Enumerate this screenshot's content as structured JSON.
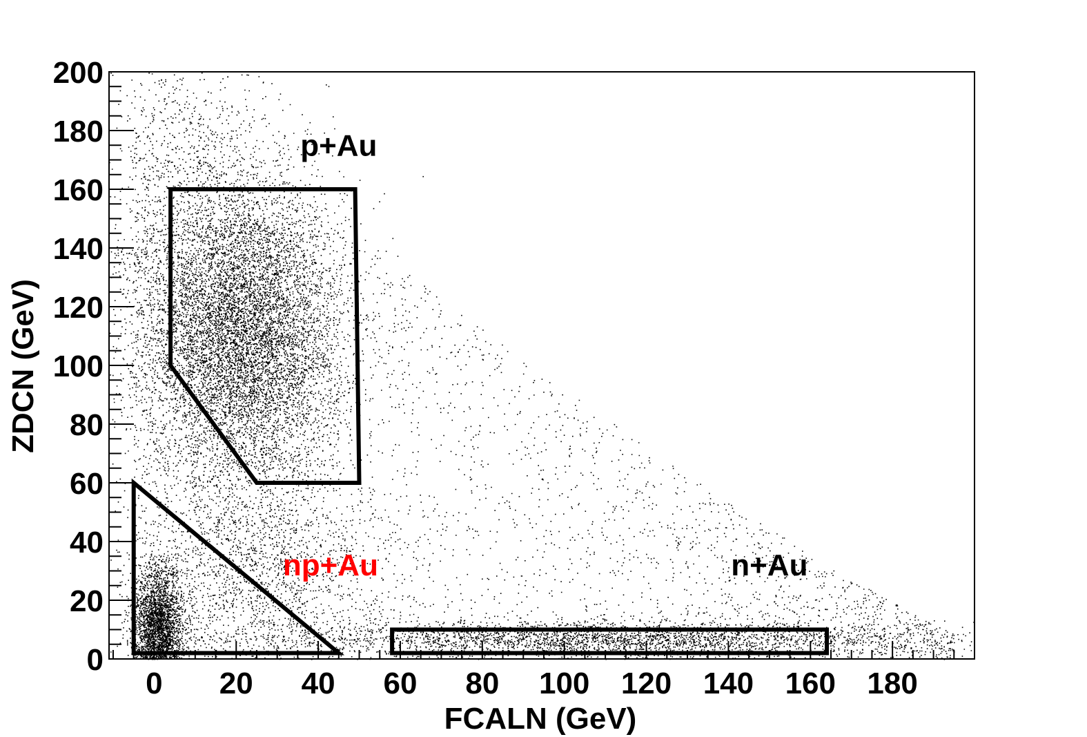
{
  "chart_data": {
    "type": "scatter",
    "title": "",
    "xlabel": "FCALN (GeV)",
    "ylabel": "ZDCN (GeV)",
    "xlim": [
      -11,
      200
    ],
    "ylim": [
      0,
      200
    ],
    "x_ticks": [
      0,
      20,
      40,
      60,
      80,
      100,
      120,
      140,
      160,
      180
    ],
    "y_ticks": [
      0,
      20,
      40,
      60,
      80,
      100,
      120,
      140,
      160,
      180,
      200
    ],
    "grid": false,
    "legend": "none",
    "point_color": "#000000",
    "density_clusters": [
      {
        "center": [
          22,
          110
        ],
        "spread": [
          12,
          25
        ],
        "weight": 0.4
      },
      {
        "center": [
          1,
          12
        ],
        "spread": [
          3,
          10
        ],
        "weight": 0.13
      },
      {
        "center": [
          10,
          140
        ],
        "spread": [
          12,
          40
        ],
        "weight": 0.09
      },
      {
        "center": [
          110,
          7
        ],
        "spread": [
          40,
          3
        ],
        "weight": 0.14
      },
      {
        "center": [
          25,
          30
        ],
        "spread": [
          15,
          18
        ],
        "weight": 0.08
      }
    ],
    "regions": [
      {
        "name": "p+Au",
        "label_position": [
          45,
          175
        ],
        "color": "#000000",
        "polygon": [
          [
            4,
            160
          ],
          [
            49,
            160
          ],
          [
            50,
            60
          ],
          [
            25,
            60
          ],
          [
            4,
            100
          ]
        ]
      },
      {
        "name": "np+Au",
        "label_position": [
          43,
          32
        ],
        "color": "#ff0000",
        "polygon": [
          [
            -5,
            60
          ],
          [
            -5,
            2
          ],
          [
            45,
            2
          ]
        ]
      },
      {
        "name": "n+Au",
        "label_position": [
          150,
          32
        ],
        "color": "#000000",
        "polygon": [
          [
            58,
            10
          ],
          [
            164,
            10
          ],
          [
            164,
            2
          ],
          [
            58,
            2
          ]
        ]
      }
    ]
  }
}
